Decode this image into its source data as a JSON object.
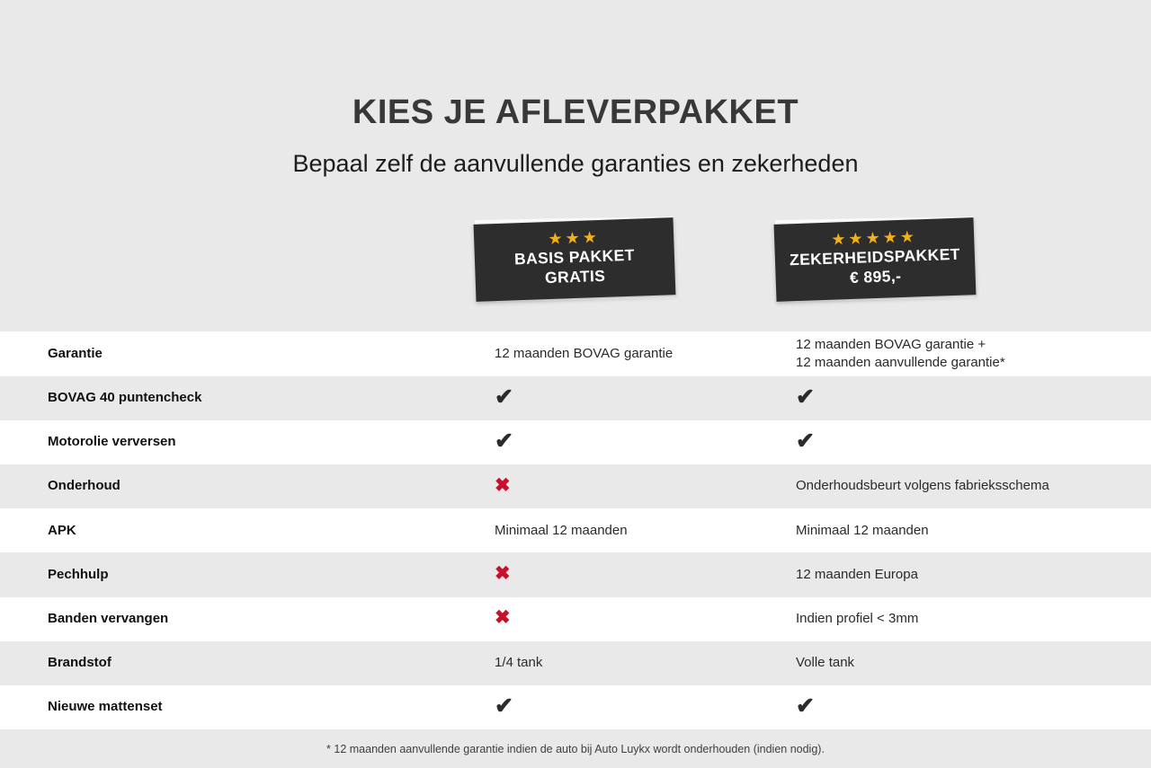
{
  "page": {
    "title": "KIES JE AFLEVERPAKKET",
    "subtitle": "Bepaal zelf de aanvullende garanties en zekerheden",
    "footnote": "* 12 maanden aanvullende garantie indien de auto bij Auto Luykx wordt onderhouden (indien nodig)."
  },
  "packages": [
    {
      "id": "basis",
      "stars": 3,
      "line1": "BASIS PAKKET",
      "line2": "GRATIS"
    },
    {
      "id": "zekerheid",
      "stars": 5,
      "line1": "ZEKERHEIDSPAKKET",
      "line2": "€ 895,-"
    }
  ],
  "marks": {
    "check": "✔",
    "cross": "✖",
    "star": "★"
  },
  "colors": {
    "badge_bg": "#2d2d2d",
    "star_gold": "#f2b01c",
    "check_black": "#2b2b2b",
    "cross_red": "#c8102e",
    "row_alt_gray": "#e9e9e9"
  },
  "rows": [
    {
      "label": "Garantie",
      "basis": {
        "kind": "text",
        "lines": [
          "12 maanden BOVAG garantie"
        ]
      },
      "zekerheid": {
        "kind": "text",
        "lines": [
          "12 maanden BOVAG garantie +",
          "12 maanden aanvullende garantie*"
        ]
      }
    },
    {
      "label": "BOVAG 40 puntencheck",
      "basis": {
        "kind": "check"
      },
      "zekerheid": {
        "kind": "check"
      }
    },
    {
      "label": "Motorolie verversen",
      "basis": {
        "kind": "check"
      },
      "zekerheid": {
        "kind": "check"
      }
    },
    {
      "label": "Onderhoud",
      "basis": {
        "kind": "cross"
      },
      "zekerheid": {
        "kind": "text",
        "lines": [
          "Onderhoudsbeurt volgens fabrieksschema"
        ]
      }
    },
    {
      "label": "APK",
      "basis": {
        "kind": "text",
        "lines": [
          "Minimaal 12 maanden"
        ]
      },
      "zekerheid": {
        "kind": "text",
        "lines": [
          "Minimaal 12 maanden"
        ]
      }
    },
    {
      "label": "Pechhulp",
      "basis": {
        "kind": "cross"
      },
      "zekerheid": {
        "kind": "text",
        "lines": [
          "12 maanden Europa"
        ]
      }
    },
    {
      "label": "Banden vervangen",
      "basis": {
        "kind": "cross"
      },
      "zekerheid": {
        "kind": "text",
        "lines": [
          "Indien profiel < 3mm"
        ]
      }
    },
    {
      "label": "Brandstof",
      "basis": {
        "kind": "text",
        "lines": [
          "1/4 tank"
        ]
      },
      "zekerheid": {
        "kind": "text",
        "lines": [
          "Volle tank"
        ]
      }
    },
    {
      "label": "Nieuwe mattenset",
      "basis": {
        "kind": "check"
      },
      "zekerheid": {
        "kind": "check"
      }
    }
  ]
}
